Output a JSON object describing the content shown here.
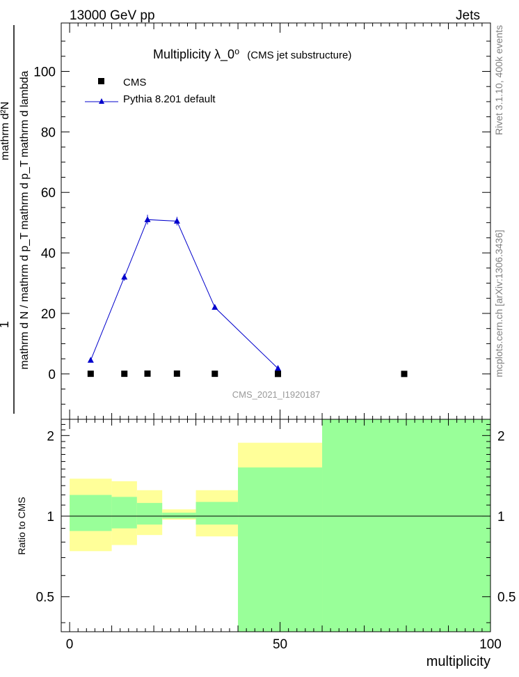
{
  "header": {
    "left": "13000 GeV pp",
    "right": "Jets"
  },
  "side_labels": {
    "upper": "Rivet 3.1.10,  400k events",
    "lower": "mcplots.cern.ch [arXiv:1306.3436]"
  },
  "watermark": "CMS_2021_I1920187",
  "chart_data": {
    "type": "line",
    "title": "Multiplicity  λ_0⁰",
    "title_suffix": "(CMS jet substructure)",
    "xlabel": "multiplicity",
    "ylabel_line1": "1",
    "ylabel_line2": "mathrm d N / mathrm d p_T mathrm d p_T mathrm d lambda",
    "ylabel_top": "mathrm d²N",
    "xlim": [
      -2,
      100
    ],
    "ylim": [
      -15,
      116
    ],
    "xticks": [
      0,
      50,
      100
    ],
    "yticks": [
      0,
      20,
      40,
      60,
      80,
      100
    ],
    "legend": [
      {
        "label": "CMS",
        "marker": "square",
        "color": "#000000"
      },
      {
        "label": "Pythia 8.201 default",
        "marker": "triangle",
        "color": "#0000cc"
      }
    ],
    "series": [
      {
        "name": "CMS",
        "x": [
          5,
          13,
          18.5,
          25.5,
          34.5,
          49.5,
          79.5
        ],
        "y": [
          0.05,
          0.05,
          0.1,
          0.1,
          0.05,
          0.0,
          0.0
        ]
      },
      {
        "name": "Pythia 8.201 default",
        "x": [
          5,
          13,
          18.5,
          25.5,
          34.5,
          49.5
        ],
        "y": [
          4.5,
          32.0,
          51.0,
          50.5,
          22.0,
          1.8
        ],
        "err": [
          0.4,
          1.2,
          1.6,
          1.4,
          0.5,
          0.3
        ]
      }
    ],
    "ratio": {
      "ylabel": "Ratio to CMS",
      "ylim": [
        0.37,
        2.3
      ],
      "yticks": [
        0.5,
        1,
        2
      ],
      "ytick_labels": [
        "0.5",
        "1",
        "2"
      ],
      "reference": 1,
      "bands": [
        {
          "x": [
            0,
            10
          ],
          "green": [
            0.88,
            1.2
          ],
          "yellow": [
            0.74,
            1.38
          ]
        },
        {
          "x": [
            10,
            16
          ],
          "green": [
            0.9,
            1.18
          ],
          "yellow": [
            0.78,
            1.35
          ]
        },
        {
          "x": [
            16,
            22
          ],
          "green": [
            0.93,
            1.12
          ],
          "yellow": [
            0.85,
            1.25
          ]
        },
        {
          "x": [
            22,
            30
          ],
          "green": [
            0.98,
            1.03
          ],
          "yellow": [
            0.97,
            1.06
          ]
        },
        {
          "x": [
            30,
            40
          ],
          "green": [
            0.93,
            1.13
          ],
          "yellow": [
            0.84,
            1.25
          ]
        },
        {
          "x": [
            40,
            60
          ],
          "green": [
            0.37,
            1.52
          ],
          "yellow": [
            0.37,
            1.88
          ]
        },
        {
          "x": [
            60,
            100
          ],
          "green": [
            0.37,
            2.3
          ],
          "yellow": [
            0.37,
            2.3
          ]
        }
      ],
      "colors": {
        "green": "#99ff99",
        "yellow": "#ffff99"
      }
    }
  }
}
